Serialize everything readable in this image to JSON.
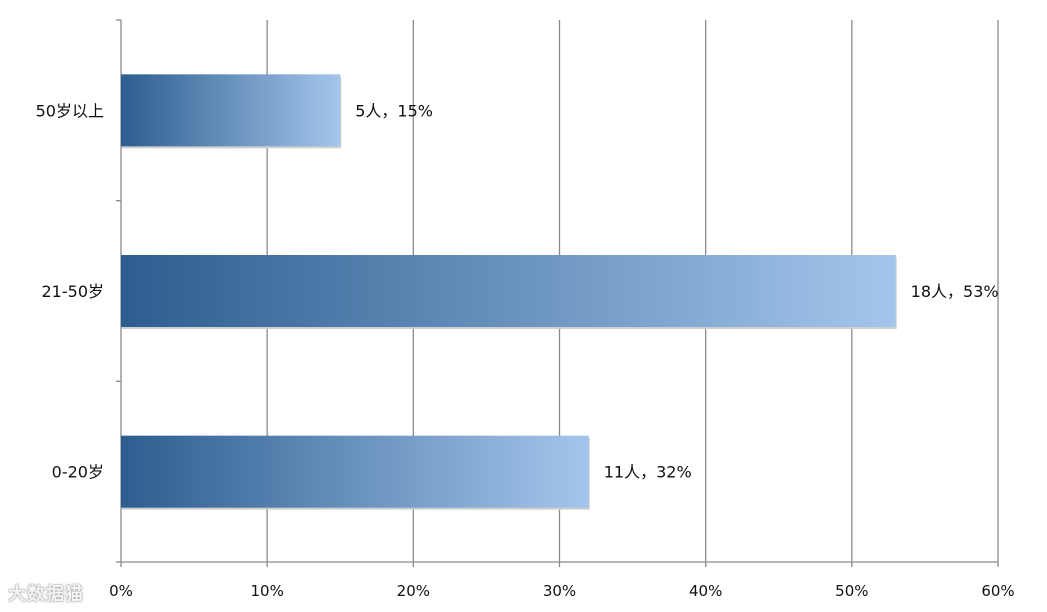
{
  "chart_data": {
    "type": "bar",
    "orientation": "horizontal",
    "categories": [
      "0-20岁",
      "21-50岁",
      "50岁以上"
    ],
    "values": [
      32,
      53,
      15
    ],
    "data_labels": [
      "11人，32%",
      "18人，53%",
      "5人，15%"
    ],
    "xlim": [
      0,
      60
    ],
    "x_ticks": [
      "0%",
      "10%",
      "20%",
      "30%",
      "40%",
      "50%",
      "60%"
    ],
    "title": "",
    "xlabel": "",
    "ylabel": "",
    "grid": "vertical",
    "bar_gradient": [
      "#2d5d8f",
      "#a4c6ec"
    ]
  },
  "watermark": {
    "text": "大数据猫"
  }
}
